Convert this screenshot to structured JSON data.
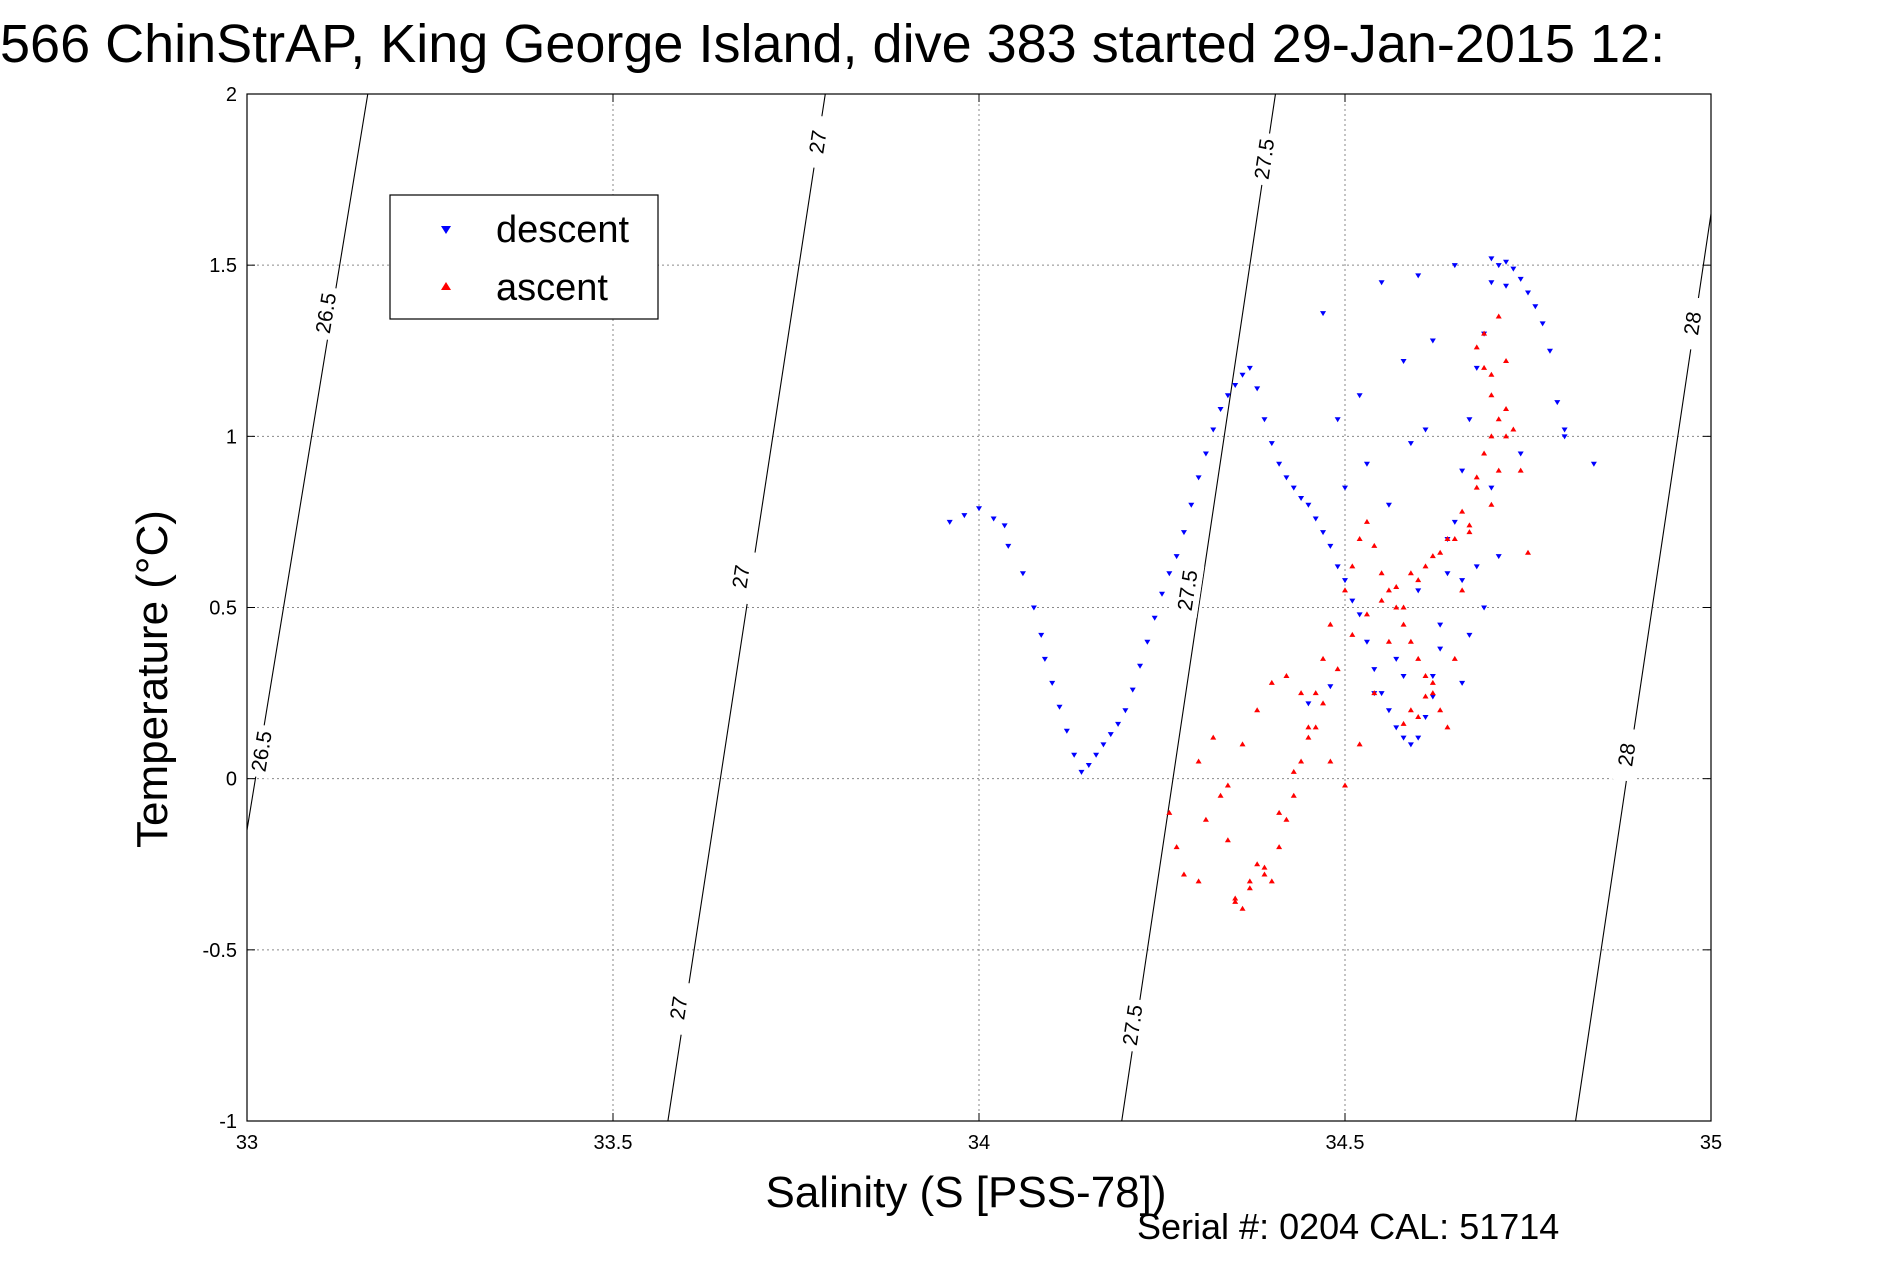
{
  "footer": "Serial #: 0204  CAL: 51714",
  "chart_data": {
    "type": "scatter",
    "title": "566 ChinStrAP, King George Island, dive 383 started 29-Jan-2015 12:",
    "xlabel": "Salinity (S [PSS-78])",
    "ylabel": "Temperature (°C)",
    "xlim": [
      33,
      35
    ],
    "ylim": [
      -1,
      2
    ],
    "xticks": [
      33,
      33.5,
      34,
      34.5,
      35
    ],
    "xtick_labels": [
      "33",
      "33.5",
      "34",
      "34.5",
      "35"
    ],
    "yticks": [
      -1,
      -0.5,
      0,
      0.5,
      1,
      1.5,
      2
    ],
    "ytick_labels": [
      "-1",
      "-0.5",
      "0",
      "0.5",
      "1",
      "1.5",
      "2"
    ],
    "grid": true,
    "legend_position": "top-left",
    "legend": [
      {
        "label": "descent",
        "color": "#0000ff",
        "marker": "triangle-down"
      },
      {
        "label": "ascent",
        "color": "#ff0000",
        "marker": "triangle-up"
      }
    ],
    "density_contours": [
      {
        "label": "26.5",
        "x": [
          33.0,
          33.165
        ],
        "y": [
          -0.15,
          2.0
        ],
        "label_points": [
          [
            33.02,
            0.08
          ],
          [
            33.108,
            1.36
          ]
        ]
      },
      {
        "label": "27",
        "x": [
          33.575,
          33.79
        ],
        "y": [
          -1.0,
          2.0
        ],
        "label_points": [
          [
            33.59,
            -0.67
          ],
          [
            33.675,
            0.59
          ],
          [
            33.78,
            1.86
          ]
        ]
      },
      {
        "label": "27.5",
        "x": [
          34.195,
          34.405
        ],
        "y": [
          -1.0,
          2.0
        ],
        "label_points": [
          [
            34.21,
            -0.72
          ],
          [
            34.285,
            0.55
          ],
          [
            34.39,
            1.81
          ]
        ]
      },
      {
        "label": "28",
        "x": [
          34.815,
          35.0
        ],
        "y": [
          -1.0,
          1.65
        ],
        "label_points": [
          [
            34.885,
            0.07
          ],
          [
            34.975,
            1.33
          ]
        ]
      }
    ],
    "series": [
      {
        "name": "descent",
        "color": "#0000ff",
        "marker": "triangle-down",
        "x": [
          33.96,
          33.98,
          34.0,
          34.02,
          34.035,
          34.04,
          34.06,
          34.075,
          34.085,
          34.09,
          34.1,
          34.11,
          34.12,
          34.13,
          34.14,
          34.15,
          34.16,
          34.17,
          34.18,
          34.19,
          34.2,
          34.21,
          34.22,
          34.23,
          34.24,
          34.25,
          34.26,
          34.27,
          34.28,
          34.29,
          34.3,
          34.31,
          34.32,
          34.33,
          34.34,
          34.35,
          34.36,
          34.37,
          34.38,
          34.39,
          34.4,
          34.41,
          34.42,
          34.43,
          34.44,
          34.45,
          34.46,
          34.47,
          34.48,
          34.49,
          34.5,
          34.51,
          34.52,
          34.53,
          34.54,
          34.55,
          34.56,
          34.57,
          34.58,
          34.59,
          34.6,
          34.61,
          34.62,
          34.63,
          34.64,
          34.65,
          34.66,
          34.67,
          34.68,
          34.69,
          34.7,
          34.71,
          34.72,
          34.73,
          34.74,
          34.75,
          34.76,
          34.77,
          34.78,
          34.79,
          34.8,
          34.84,
          34.47,
          34.55,
          34.6,
          34.65,
          34.7,
          34.72,
          34.62,
          34.58,
          34.52,
          34.49,
          34.6,
          34.66,
          34.68,
          34.64,
          34.56,
          34.5,
          34.53,
          34.59,
          34.61,
          34.57,
          34.63,
          34.67,
          34.69,
          34.71,
          34.45,
          34.48,
          34.54,
          34.58,
          34.62,
          34.66,
          34.7,
          34.74,
          34.8
        ],
        "y": [
          0.75,
          0.77,
          0.79,
          0.76,
          0.74,
          0.68,
          0.6,
          0.5,
          0.42,
          0.35,
          0.28,
          0.21,
          0.14,
          0.07,
          0.02,
          0.04,
          0.07,
          0.1,
          0.13,
          0.16,
          0.2,
          0.26,
          0.33,
          0.4,
          0.47,
          0.54,
          0.6,
          0.65,
          0.72,
          0.8,
          0.88,
          0.95,
          1.02,
          1.08,
          1.12,
          1.15,
          1.18,
          1.2,
          1.14,
          1.05,
          0.98,
          0.92,
          0.88,
          0.85,
          0.82,
          0.8,
          0.76,
          0.72,
          0.68,
          0.62,
          0.58,
          0.52,
          0.48,
          0.4,
          0.32,
          0.25,
          0.2,
          0.15,
          0.12,
          0.1,
          0.12,
          0.18,
          0.3,
          0.45,
          0.6,
          0.75,
          0.9,
          1.05,
          1.2,
          1.3,
          1.45,
          1.5,
          1.51,
          1.49,
          1.46,
          1.42,
          1.38,
          1.33,
          1.25,
          1.1,
          1.0,
          0.92,
          1.36,
          1.45,
          1.47,
          1.5,
          1.52,
          1.44,
          1.28,
          1.22,
          1.12,
          1.05,
          0.55,
          0.58,
          0.62,
          0.7,
          0.8,
          0.85,
          0.92,
          0.98,
          1.02,
          0.35,
          0.38,
          0.42,
          0.5,
          0.65,
          0.22,
          0.27,
          0.25,
          0.3,
          0.24,
          0.28,
          0.85,
          0.95,
          1.02
        ]
      },
      {
        "name": "ascent",
        "color": "#ff0000",
        "marker": "triangle-up",
        "x": [
          34.26,
          34.27,
          34.28,
          34.3,
          34.31,
          34.33,
          34.34,
          34.35,
          34.36,
          34.37,
          34.38,
          34.39,
          34.4,
          34.41,
          34.42,
          34.43,
          34.44,
          34.45,
          34.46,
          34.47,
          34.48,
          34.5,
          34.51,
          34.52,
          34.53,
          34.54,
          34.55,
          34.56,
          34.57,
          34.58,
          34.59,
          34.6,
          34.61,
          34.62,
          34.63,
          34.64,
          34.65,
          34.66,
          34.67,
          34.68,
          34.69,
          34.7,
          34.71,
          34.72,
          34.73,
          34.74,
          34.75,
          34.3,
          34.32,
          34.34,
          34.36,
          34.38,
          34.4,
          34.42,
          34.44,
          34.46,
          34.48,
          34.5,
          34.52,
          34.54,
          34.56,
          34.58,
          34.6,
          34.62,
          34.64,
          34.66,
          34.68,
          34.7,
          34.72,
          34.35,
          34.37,
          34.39,
          34.41,
          34.43,
          34.45,
          34.47,
          34.49,
          34.51,
          34.53,
          34.55,
          34.57,
          34.59,
          34.61,
          34.63,
          34.65,
          34.67,
          34.69,
          34.71,
          34.6,
          34.61,
          34.62,
          34.58,
          34.59,
          34.7,
          34.71,
          34.72,
          34.7,
          34.68,
          34.69
        ],
        "y": [
          -0.1,
          -0.2,
          -0.28,
          -0.3,
          -0.12,
          -0.05,
          -0.18,
          -0.36,
          -0.38,
          -0.3,
          -0.25,
          -0.28,
          -0.3,
          -0.2,
          -0.12,
          -0.05,
          0.05,
          0.15,
          0.25,
          0.35,
          0.45,
          0.55,
          0.62,
          0.7,
          0.75,
          0.68,
          0.6,
          0.55,
          0.5,
          0.45,
          0.4,
          0.35,
          0.3,
          0.25,
          0.2,
          0.15,
          0.35,
          0.55,
          0.72,
          0.85,
          0.95,
          1.0,
          1.05,
          1.08,
          1.02,
          0.9,
          0.66,
          0.05,
          0.12,
          -0.02,
          0.1,
          0.2,
          0.28,
          0.3,
          0.25,
          0.15,
          0.05,
          -0.02,
          0.1,
          0.25,
          0.4,
          0.5,
          0.58,
          0.65,
          0.7,
          0.78,
          0.88,
          1.18,
          1.22,
          -0.35,
          -0.32,
          -0.26,
          -0.1,
          0.02,
          0.12,
          0.22,
          0.32,
          0.42,
          0.48,
          0.52,
          0.56,
          0.6,
          0.62,
          0.66,
          0.7,
          0.74,
          1.3,
          1.35,
          0.18,
          0.24,
          0.28,
          0.16,
          0.2,
          0.8,
          0.9,
          1.0,
          1.12,
          1.26,
          1.2
        ]
      }
    ]
  }
}
